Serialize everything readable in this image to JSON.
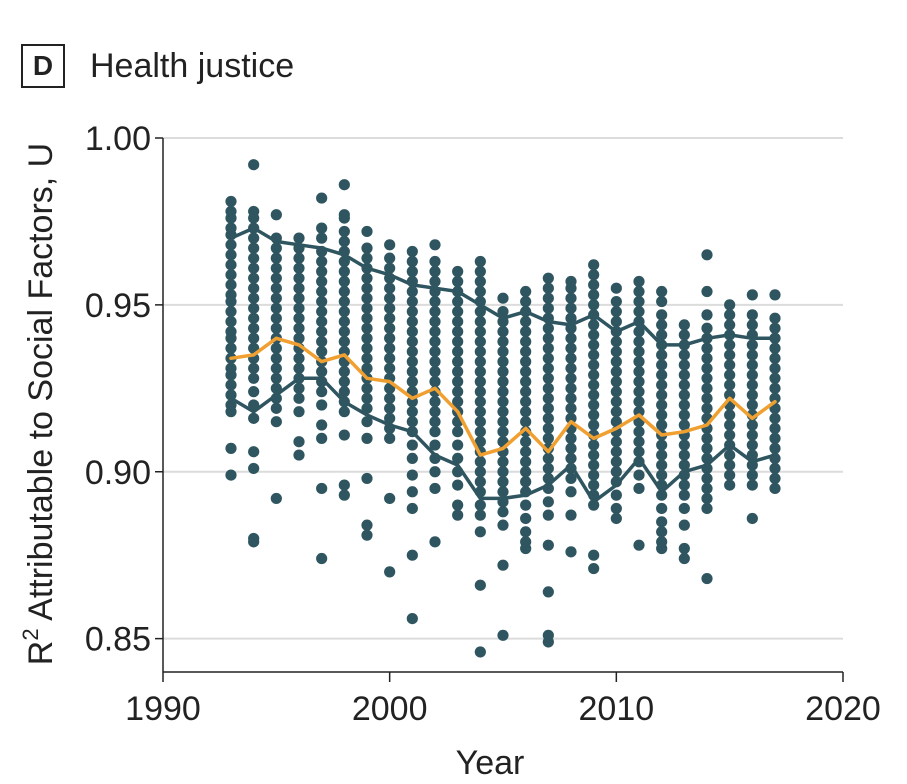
{
  "panel": {
    "letter": "D",
    "title": "Health justice"
  },
  "chart_data": {
    "type": "scatter",
    "xlabel": "Year",
    "ylabel": "R",
    "ylabel_sup": "2",
    "ylabel_rest": " Attributable to Social Factors, U",
    "xlim": [
      1990,
      2020
    ],
    "ylim": [
      0.84,
      1.0
    ],
    "xticks": [
      1990,
      2000,
      2010,
      2020
    ],
    "yticks": [
      0.85,
      0.9,
      0.95,
      1.0
    ],
    "ytick_labels": [
      "0.85",
      "0.90",
      "0.95",
      "1.00"
    ],
    "grid": "horizontal",
    "colors": {
      "points": "#2f5660",
      "bands": "#2f5660",
      "mean": "#f0a030",
      "grid": "#dcdcdc",
      "axis": "#222222"
    },
    "points": [
      {
        "year": 1993,
        "values": [
          0.899,
          0.907,
          0.918,
          0.92,
          0.923,
          0.926,
          0.929,
          0.931,
          0.934,
          0.937,
          0.94,
          0.942,
          0.945,
          0.948,
          0.951,
          0.953,
          0.956,
          0.959,
          0.962,
          0.965,
          0.968,
          0.971,
          0.973,
          0.976,
          0.978,
          0.981
        ]
      },
      {
        "year": 1994,
        "values": [
          0.879,
          0.88,
          0.901,
          0.906,
          0.916,
          0.92,
          0.924,
          0.928,
          0.931,
          0.934,
          0.937,
          0.94,
          0.943,
          0.946,
          0.949,
          0.952,
          0.955,
          0.958,
          0.961,
          0.964,
          0.967,
          0.97,
          0.973,
          0.976,
          0.978,
          0.992
        ]
      },
      {
        "year": 1995,
        "values": [
          0.892,
          0.915,
          0.919,
          0.922,
          0.925,
          0.928,
          0.931,
          0.934,
          0.937,
          0.94,
          0.943,
          0.946,
          0.949,
          0.952,
          0.955,
          0.958,
          0.961,
          0.964,
          0.967,
          0.97,
          0.977
        ]
      },
      {
        "year": 1996,
        "values": [
          0.905,
          0.909,
          0.918,
          0.922,
          0.925,
          0.928,
          0.931,
          0.934,
          0.937,
          0.94,
          0.943,
          0.946,
          0.949,
          0.952,
          0.955,
          0.958,
          0.961,
          0.964,
          0.967,
          0.97
        ]
      },
      {
        "year": 1997,
        "values": [
          0.874,
          0.895,
          0.91,
          0.914,
          0.92,
          0.924,
          0.927,
          0.93,
          0.933,
          0.936,
          0.939,
          0.942,
          0.945,
          0.948,
          0.951,
          0.954,
          0.957,
          0.96,
          0.963,
          0.966,
          0.97,
          0.973,
          0.982
        ]
      },
      {
        "year": 1998,
        "values": [
          0.893,
          0.896,
          0.911,
          0.918,
          0.921,
          0.924,
          0.927,
          0.93,
          0.933,
          0.936,
          0.939,
          0.942,
          0.945,
          0.948,
          0.951,
          0.954,
          0.957,
          0.96,
          0.963,
          0.966,
          0.969,
          0.972,
          0.976,
          0.977,
          0.986
        ]
      },
      {
        "year": 1999,
        "values": [
          0.881,
          0.884,
          0.898,
          0.91,
          0.915,
          0.919,
          0.922,
          0.925,
          0.928,
          0.931,
          0.934,
          0.937,
          0.94,
          0.943,
          0.946,
          0.949,
          0.952,
          0.955,
          0.958,
          0.961,
          0.964,
          0.967,
          0.972
        ]
      },
      {
        "year": 2000,
        "values": [
          0.87,
          0.892,
          0.91,
          0.913,
          0.916,
          0.919,
          0.922,
          0.925,
          0.928,
          0.931,
          0.934,
          0.937,
          0.94,
          0.943,
          0.946,
          0.949,
          0.952,
          0.955,
          0.958,
          0.961,
          0.964,
          0.968
        ]
      },
      {
        "year": 2001,
        "values": [
          0.856,
          0.875,
          0.889,
          0.894,
          0.899,
          0.904,
          0.908,
          0.912,
          0.915,
          0.918,
          0.921,
          0.924,
          0.927,
          0.93,
          0.933,
          0.936,
          0.939,
          0.942,
          0.945,
          0.948,
          0.951,
          0.954,
          0.957,
          0.96,
          0.963,
          0.966
        ]
      },
      {
        "year": 2002,
        "values": [
          0.879,
          0.895,
          0.9,
          0.904,
          0.908,
          0.912,
          0.915,
          0.918,
          0.921,
          0.924,
          0.927,
          0.93,
          0.933,
          0.936,
          0.939,
          0.942,
          0.945,
          0.948,
          0.951,
          0.954,
          0.957,
          0.96,
          0.963,
          0.968
        ]
      },
      {
        "year": 2003,
        "values": [
          0.887,
          0.89,
          0.896,
          0.9,
          0.904,
          0.908,
          0.912,
          0.915,
          0.918,
          0.921,
          0.924,
          0.927,
          0.93,
          0.933,
          0.936,
          0.939,
          0.942,
          0.945,
          0.948,
          0.951,
          0.954,
          0.957,
          0.96
        ]
      },
      {
        "year": 2004,
        "values": [
          0.846,
          0.866,
          0.882,
          0.887,
          0.89,
          0.894,
          0.897,
          0.9,
          0.903,
          0.906,
          0.909,
          0.912,
          0.915,
          0.918,
          0.921,
          0.924,
          0.927,
          0.93,
          0.933,
          0.936,
          0.939,
          0.942,
          0.945,
          0.948,
          0.951,
          0.954,
          0.957,
          0.96,
          0.963
        ]
      },
      {
        "year": 2005,
        "values": [
          0.851,
          0.872,
          0.884,
          0.888,
          0.891,
          0.894,
          0.897,
          0.9,
          0.903,
          0.906,
          0.909,
          0.912,
          0.915,
          0.918,
          0.921,
          0.924,
          0.927,
          0.93,
          0.933,
          0.936,
          0.939,
          0.942,
          0.945,
          0.948,
          0.952
        ]
      },
      {
        "year": 2006,
        "values": [
          0.877,
          0.879,
          0.882,
          0.886,
          0.89,
          0.894,
          0.897,
          0.9,
          0.903,
          0.906,
          0.909,
          0.912,
          0.915,
          0.918,
          0.921,
          0.924,
          0.927,
          0.93,
          0.933,
          0.936,
          0.939,
          0.942,
          0.945,
          0.948,
          0.951,
          0.954
        ]
      },
      {
        "year": 2007,
        "values": [
          0.849,
          0.851,
          0.864,
          0.878,
          0.887,
          0.891,
          0.895,
          0.898,
          0.901,
          0.904,
          0.907,
          0.91,
          0.913,
          0.916,
          0.919,
          0.922,
          0.925,
          0.928,
          0.931,
          0.934,
          0.937,
          0.94,
          0.943,
          0.946,
          0.949,
          0.952,
          0.955,
          0.958
        ]
      },
      {
        "year": 2008,
        "values": [
          0.876,
          0.887,
          0.894,
          0.898,
          0.901,
          0.904,
          0.907,
          0.91,
          0.913,
          0.916,
          0.919,
          0.922,
          0.925,
          0.928,
          0.931,
          0.934,
          0.937,
          0.94,
          0.943,
          0.946,
          0.949,
          0.952,
          0.955,
          0.957
        ]
      },
      {
        "year": 2009,
        "values": [
          0.871,
          0.875,
          0.89,
          0.893,
          0.896,
          0.899,
          0.902,
          0.905,
          0.908,
          0.911,
          0.914,
          0.917,
          0.92,
          0.923,
          0.926,
          0.929,
          0.932,
          0.935,
          0.938,
          0.941,
          0.944,
          0.947,
          0.95,
          0.953,
          0.956,
          0.959,
          0.962
        ]
      },
      {
        "year": 2010,
        "values": [
          0.886,
          0.889,
          0.893,
          0.897,
          0.9,
          0.903,
          0.906,
          0.909,
          0.912,
          0.915,
          0.918,
          0.921,
          0.924,
          0.927,
          0.93,
          0.933,
          0.936,
          0.939,
          0.942,
          0.945,
          0.948,
          0.951,
          0.955
        ]
      },
      {
        "year": 2011,
        "values": [
          0.878,
          0.895,
          0.899,
          0.903,
          0.906,
          0.909,
          0.912,
          0.915,
          0.918,
          0.921,
          0.924,
          0.927,
          0.93,
          0.933,
          0.936,
          0.939,
          0.942,
          0.945,
          0.948,
          0.951,
          0.954,
          0.957
        ]
      },
      {
        "year": 2012,
        "values": [
          0.877,
          0.879,
          0.882,
          0.885,
          0.889,
          0.893,
          0.896,
          0.899,
          0.902,
          0.905,
          0.908,
          0.911,
          0.914,
          0.917,
          0.92,
          0.923,
          0.926,
          0.929,
          0.932,
          0.935,
          0.938,
          0.941,
          0.944,
          0.947,
          0.951,
          0.954
        ]
      },
      {
        "year": 2013,
        "values": [
          0.874,
          0.877,
          0.884,
          0.889,
          0.893,
          0.896,
          0.899,
          0.902,
          0.905,
          0.908,
          0.911,
          0.914,
          0.917,
          0.92,
          0.923,
          0.926,
          0.929,
          0.932,
          0.935,
          0.938,
          0.941,
          0.944
        ]
      },
      {
        "year": 2014,
        "values": [
          0.868,
          0.889,
          0.892,
          0.895,
          0.898,
          0.901,
          0.904,
          0.907,
          0.91,
          0.913,
          0.916,
          0.919,
          0.922,
          0.925,
          0.928,
          0.931,
          0.934,
          0.937,
          0.94,
          0.943,
          0.947,
          0.954,
          0.965
        ]
      },
      {
        "year": 2015,
        "values": [
          0.896,
          0.899,
          0.902,
          0.905,
          0.908,
          0.911,
          0.914,
          0.917,
          0.92,
          0.923,
          0.926,
          0.929,
          0.932,
          0.935,
          0.938,
          0.941,
          0.944,
          0.947,
          0.95
        ]
      },
      {
        "year": 2016,
        "values": [
          0.886,
          0.896,
          0.899,
          0.902,
          0.905,
          0.908,
          0.911,
          0.914,
          0.917,
          0.92,
          0.923,
          0.926,
          0.929,
          0.932,
          0.935,
          0.938,
          0.941,
          0.944,
          0.947,
          0.953
        ]
      },
      {
        "year": 2017,
        "values": [
          0.895,
          0.898,
          0.901,
          0.904,
          0.907,
          0.91,
          0.913,
          0.916,
          0.919,
          0.922,
          0.925,
          0.928,
          0.931,
          0.934,
          0.937,
          0.94,
          0.943,
          0.946,
          0.953
        ]
      }
    ],
    "series": [
      {
        "role": "upper",
        "x": [
          1993,
          1994,
          1995,
          1996,
          1997,
          1998,
          1999,
          2000,
          2001,
          2002,
          2003,
          2004,
          2005,
          2006,
          2007,
          2008,
          2009,
          2010,
          2011,
          2012,
          2013,
          2014,
          2015,
          2016,
          2017
        ],
        "y": [
          0.97,
          0.973,
          0.969,
          0.968,
          0.967,
          0.965,
          0.961,
          0.959,
          0.956,
          0.955,
          0.954,
          0.95,
          0.946,
          0.948,
          0.945,
          0.944,
          0.947,
          0.942,
          0.945,
          0.938,
          0.938,
          0.94,
          0.941,
          0.94,
          0.94
        ]
      },
      {
        "role": "mean",
        "x": [
          1993,
          1994,
          1995,
          1996,
          1997,
          1998,
          1999,
          2000,
          2001,
          2002,
          2003,
          2004,
          2005,
          2006,
          2007,
          2008,
          2009,
          2010,
          2011,
          2012,
          2013,
          2014,
          2015,
          2016,
          2017
        ],
        "y": [
          0.934,
          0.935,
          0.94,
          0.938,
          0.933,
          0.935,
          0.928,
          0.927,
          0.922,
          0.925,
          0.918,
          0.905,
          0.907,
          0.913,
          0.906,
          0.915,
          0.91,
          0.913,
          0.917,
          0.911,
          0.912,
          0.914,
          0.922,
          0.916,
          0.921
        ]
      },
      {
        "role": "lower",
        "x": [
          1993,
          1994,
          1995,
          1996,
          1997,
          1998,
          1999,
          2000,
          2001,
          2002,
          2003,
          2004,
          2005,
          2006,
          2007,
          2008,
          2009,
          2010,
          2011,
          2012,
          2013,
          2014,
          2015,
          2016,
          2017
        ],
        "y": [
          0.922,
          0.918,
          0.923,
          0.928,
          0.928,
          0.921,
          0.917,
          0.914,
          0.912,
          0.905,
          0.902,
          0.892,
          0.892,
          0.893,
          0.896,
          0.902,
          0.891,
          0.896,
          0.904,
          0.894,
          0.9,
          0.902,
          0.908,
          0.903,
          0.905
        ]
      }
    ]
  }
}
